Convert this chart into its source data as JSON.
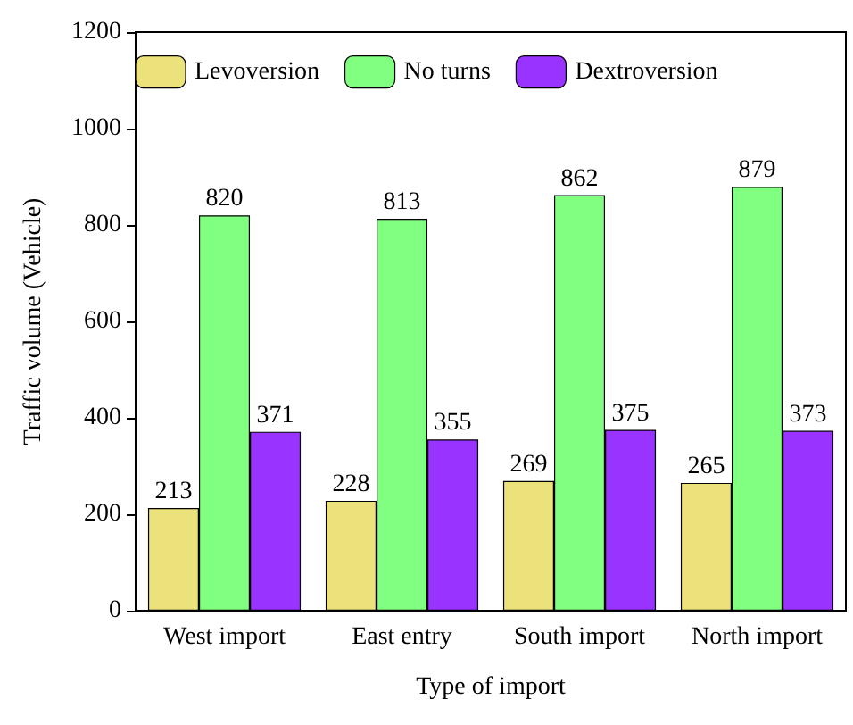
{
  "chart_data": {
    "type": "bar",
    "xlabel": "Type of import",
    "ylabel": "Traffic volume (Vehicle)",
    "categories": [
      "West import",
      "East entry",
      "South import",
      "North import"
    ],
    "series": [
      {
        "name": "Levoversion",
        "color": "#ece27c",
        "values": [
          213,
          228,
          269,
          265
        ]
      },
      {
        "name": "No turns",
        "color": "#80ff80",
        "values": [
          820,
          813,
          862,
          879
        ]
      },
      {
        "name": "Dextroversion",
        "color": "#9933ff",
        "values": [
          371,
          355,
          375,
          373
        ]
      }
    ],
    "ylim": [
      0,
      1200
    ],
    "yticks": [
      0,
      200,
      400,
      600,
      800,
      1000,
      1200
    ],
    "grid": false,
    "legend": "top",
    "data_labels": true
  }
}
